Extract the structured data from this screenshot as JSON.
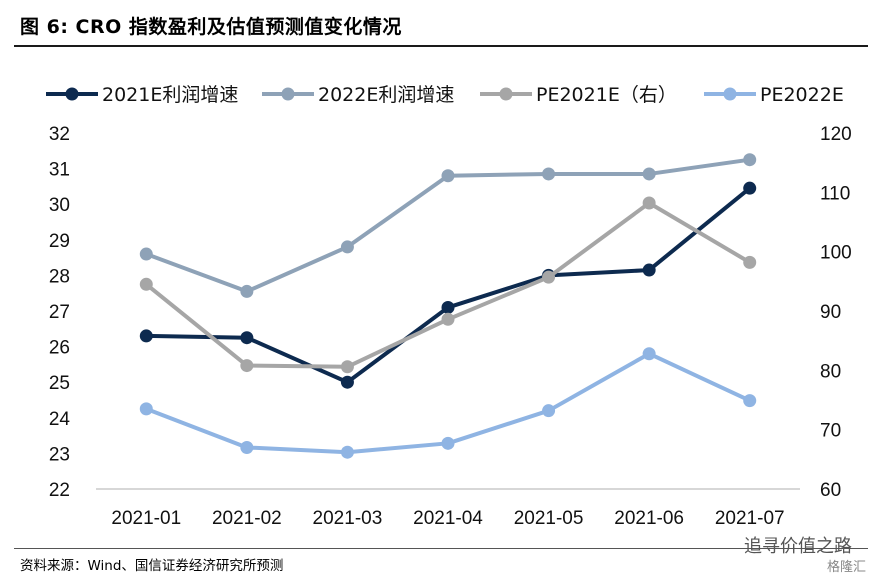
{
  "header": {
    "title": "图 6:  CRO 指数盈利及估值预测值变化情况"
  },
  "footer": {
    "source": "资料来源：Wind、国信证券经济研究所预测"
  },
  "watermark": {
    "text": "追寻价值之路",
    "logo_text": "格隆汇"
  },
  "chart_data": {
    "type": "line",
    "categories": [
      "2021-01",
      "2021-02",
      "2021-03",
      "2021-04",
      "2021-05",
      "2021-06",
      "2021-07"
    ],
    "y_left": {
      "lim": [
        22,
        32
      ],
      "ticks": [
        "22",
        "23",
        "24",
        "25",
        "26",
        "27",
        "28",
        "29",
        "30",
        "31",
        "32"
      ]
    },
    "y_right": {
      "lim": [
        60,
        120
      ],
      "ticks": [
        "60",
        "70",
        "80",
        "90",
        "100",
        "110",
        "120"
      ]
    },
    "grid": false,
    "legend_position": "top",
    "series": [
      {
        "name": "2021E利润增速",
        "axis": "left",
        "color": "#0d2a4f",
        "values": [
          26.3,
          26.25,
          25.0,
          27.1,
          28.0,
          28.15,
          30.45
        ]
      },
      {
        "name": "2022E利润增速",
        "axis": "left",
        "color": "#8ea2b7",
        "values": [
          28.6,
          27.55,
          28.8,
          30.8,
          30.85,
          30.85,
          31.25
        ]
      },
      {
        "name": "PE2021E（右）",
        "axis": "right",
        "color": "#a6a6a6",
        "values": [
          94.5,
          80.8,
          80.6,
          88.6,
          95.7,
          108.2,
          98.2
        ]
      },
      {
        "name": "PE2022E",
        "axis": "right",
        "color": "#8fb4e3",
        "values": [
          73.5,
          67.0,
          66.2,
          67.7,
          73.2,
          82.8,
          74.9
        ]
      }
    ]
  }
}
